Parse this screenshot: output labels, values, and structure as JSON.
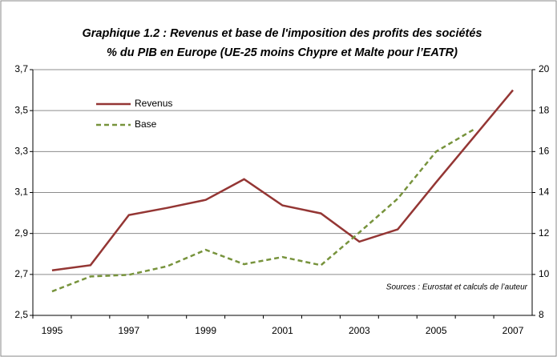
{
  "chart_data": {
    "type": "line",
    "title": "Graphique 1.2 : Revenus et base de l'imposition  des profits des sociétés",
    "subtitle": "% du PIB en Europe (UE-25 moins Chypre et Malte pour l’EATR)",
    "annotation": "Sources : Eurostat et calculs de l’auteur",
    "categories": [
      "1995",
      null,
      "1997",
      null,
      "1999",
      null,
      "2001",
      null,
      "2003",
      null,
      "2005",
      null,
      "2007"
    ],
    "series": [
      {
        "name": "Revenus",
        "color": "#943634",
        "values": [
          2.72,
          2.745,
          2.99,
          3.025,
          3.064,
          3.165,
          3.037,
          2.998,
          2.86,
          2.92,
          3.15,
          3.375,
          3.6
        ]
      },
      {
        "name": "Base",
        "color": "#77933c",
        "axis": "y2",
        "dashed": true,
        "values": [
          9.17,
          9.9,
          9.98,
          10.4,
          11.2,
          10.5,
          10.85,
          10.45,
          12.05,
          13.7,
          16.0,
          17.1,
          null
        ]
      }
    ],
    "ylim": [
      2.5,
      3.7
    ],
    "yticks": [
      {
        "value": 2.5,
        "label": "2,5"
      },
      {
        "value": 2.7,
        "label": "2,7"
      },
      {
        "value": 2.9,
        "label": "2,9"
      },
      {
        "value": 3.1,
        "label": "3,1"
      },
      {
        "value": 3.3,
        "label": "3,3"
      },
      {
        "value": 3.5,
        "label": "3,5"
      },
      {
        "value": 3.7,
        "label": "3,7"
      }
    ],
    "y2lim": [
      8,
      20
    ],
    "y2ticks": [
      8,
      10,
      12,
      14,
      16,
      18,
      20
    ],
    "grid": true,
    "legend": "top-left"
  }
}
